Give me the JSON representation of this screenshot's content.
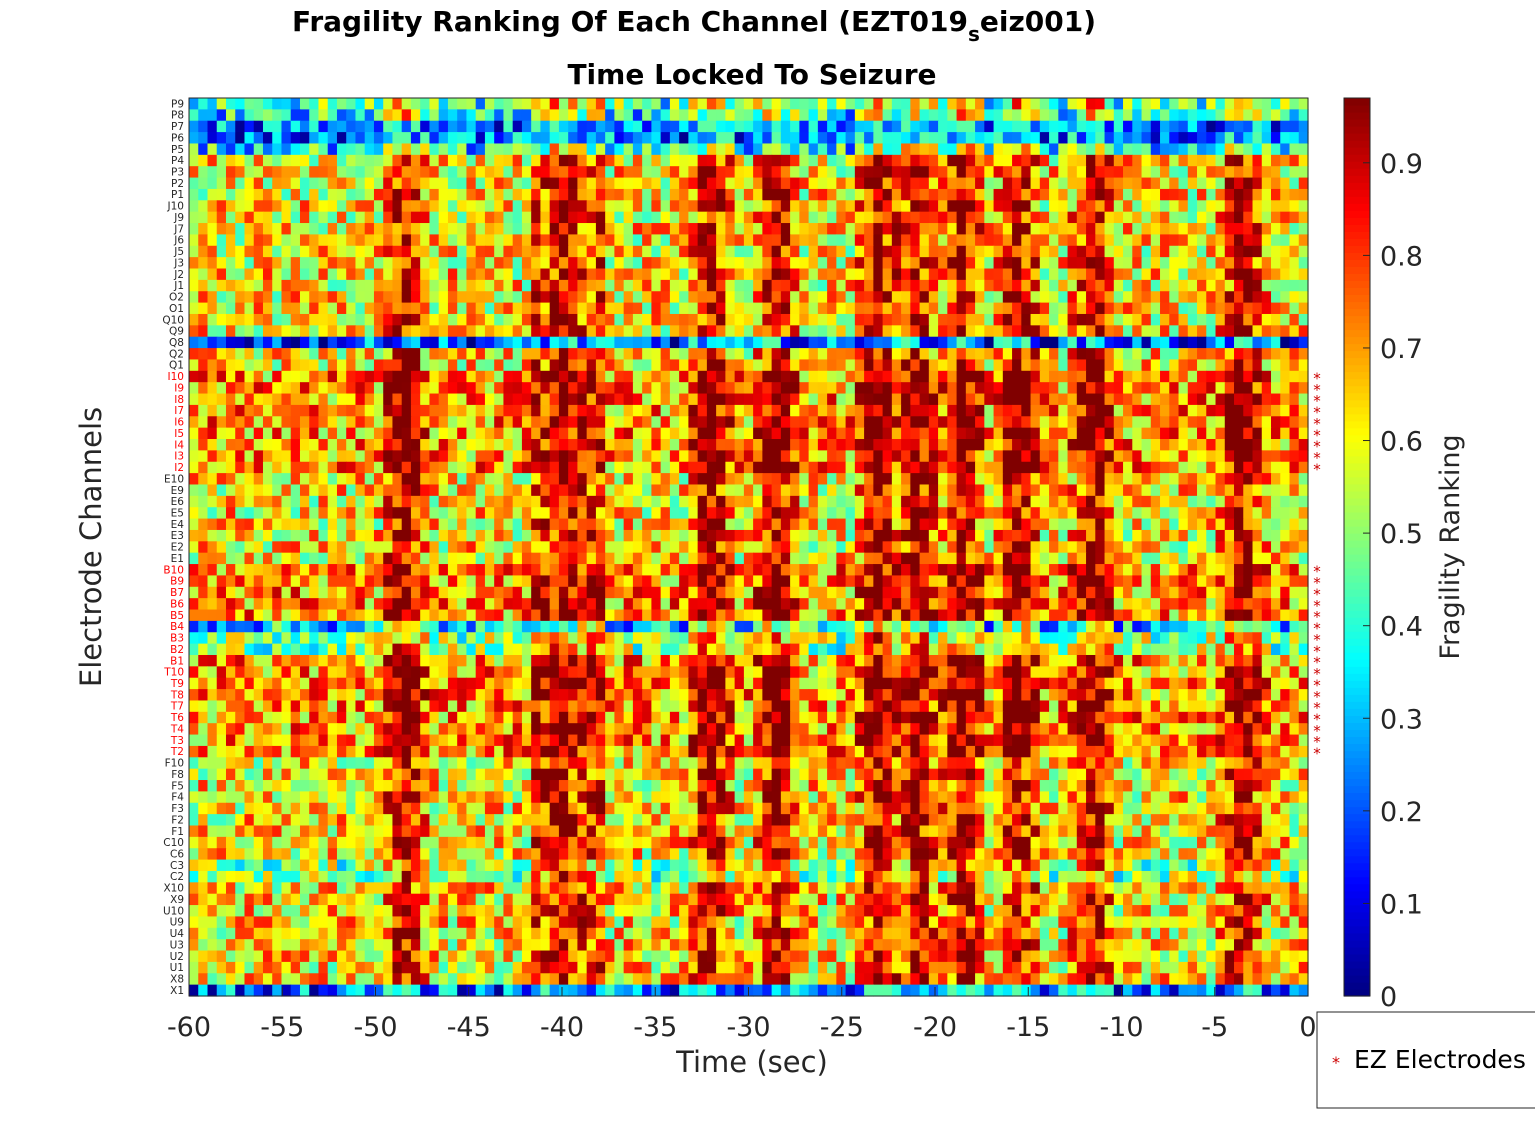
{
  "chart_data": {
    "type": "heatmap",
    "title_main": "Fragility Ranking Of Each Channel (EZT019",
    "title_sub": "s",
    "title_end": "eiz001)",
    "subtitle": "Time Locked To Seizure",
    "xlabel": "Time (sec)",
    "ylabel": "Electrode Channels",
    "colorbar_label": "Fragility Ranking",
    "colormap": "jet",
    "xlim": [
      -60,
      0
    ],
    "clim": [
      0,
      0.97
    ],
    "x_ticks": [
      "-60",
      "-55",
      "-50",
      "-45",
      "-40",
      "-35",
      "-30",
      "-25",
      "-20",
      "-15",
      "-10",
      "-5",
      "0"
    ],
    "x_tick_values": [
      -60,
      -55,
      -50,
      -45,
      -40,
      -35,
      -30,
      -25,
      -20,
      -15,
      -10,
      -5,
      0
    ],
    "colorbar_ticks": [
      "0",
      "0.1",
      "0.2",
      "0.3",
      "0.4",
      "0.5",
      "0.6",
      "0.7",
      "0.8",
      "0.9"
    ],
    "colorbar_tick_values": [
      0,
      0.1,
      0.2,
      0.3,
      0.4,
      0.5,
      0.6,
      0.7,
      0.8,
      0.9
    ],
    "channels": [
      "P9",
      "P8",
      "P7",
      "P6",
      "P5",
      "P4",
      "P3",
      "P2",
      "P1",
      "J10",
      "J9",
      "J7",
      "J6",
      "J5",
      "J3",
      "J2",
      "J1",
      "O2",
      "O1",
      "Q10",
      "Q9",
      "Q8",
      "Q2",
      "Q1",
      "I10",
      "I9",
      "I8",
      "I7",
      "I6",
      "I5",
      "I4",
      "I3",
      "I2",
      "E10",
      "E9",
      "E6",
      "E5",
      "E4",
      "E3",
      "E2",
      "E1",
      "B10",
      "B9",
      "B7",
      "B6",
      "B5",
      "B4",
      "B3",
      "B2",
      "B1",
      "T10",
      "T9",
      "T8",
      "T7",
      "T6",
      "T4",
      "T3",
      "T2",
      "F10",
      "F8",
      "F5",
      "F4",
      "F3",
      "F2",
      "F1",
      "C10",
      "C6",
      "C3",
      "C2",
      "X10",
      "X9",
      "U10",
      "U9",
      "U4",
      "U3",
      "U2",
      "U1",
      "X8",
      "X1"
    ],
    "ez_channels": [
      "I10",
      "I9",
      "I8",
      "I7",
      "I6",
      "I5",
      "I4",
      "I3",
      "I2",
      "B10",
      "B9",
      "B7",
      "B6",
      "B5",
      "B4",
      "B3",
      "B2",
      "B1",
      "T10",
      "T9",
      "T8",
      "T7",
      "T6",
      "T4",
      "T3",
      "T2"
    ],
    "n_time_windows": 121,
    "vertical_bands_sec": [
      -48.5,
      -40,
      -32,
      -28.5,
      -23,
      -21,
      -18.5,
      -15.5,
      -11.5,
      -3.5
    ],
    "row_characteristics": {
      "low_rows": [
        "P7",
        "P6",
        "Q8",
        "B4",
        "X1"
      ],
      "high_region": [
        "I10-B1",
        "T10-T2"
      ]
    },
    "legend": {
      "marker": "*",
      "label": "EZ Electrodes",
      "color": "#cc0000"
    },
    "ez_color": "#ff0000"
  }
}
